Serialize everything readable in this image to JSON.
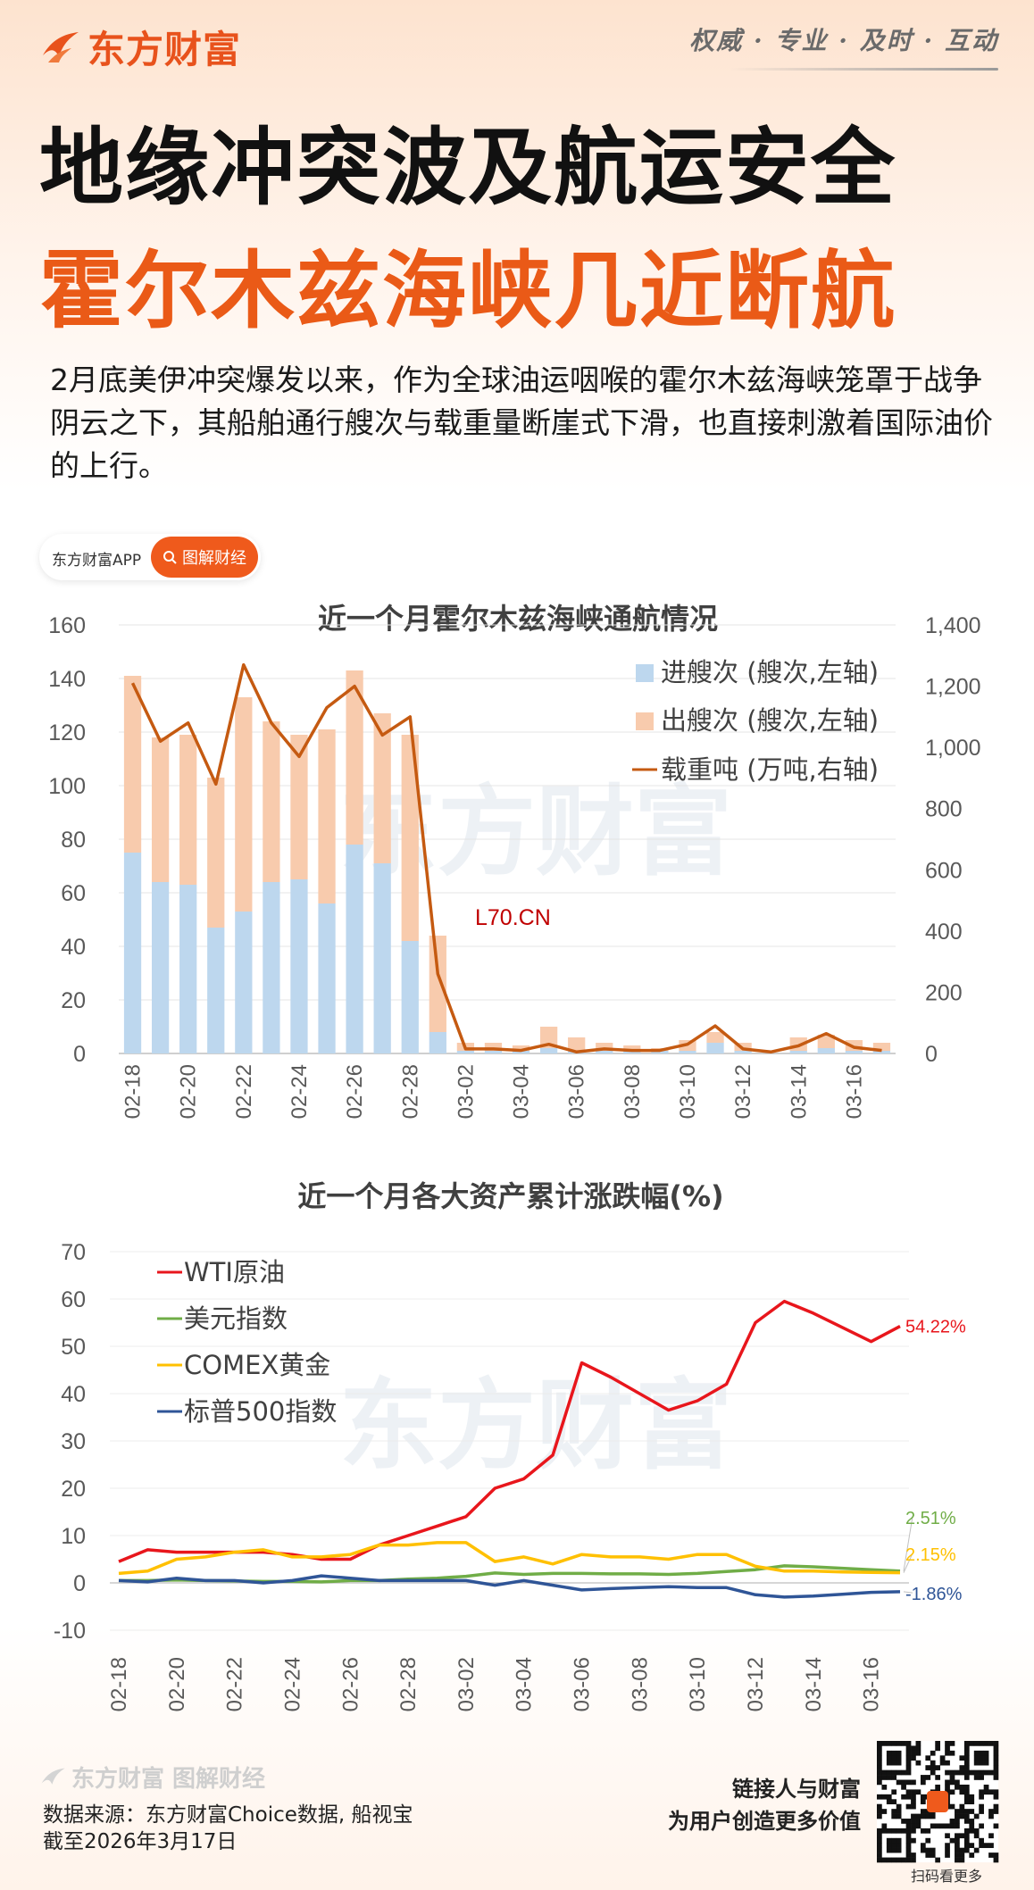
{
  "header": {
    "brand": "东方财富",
    "slogan": "权威 · 专业 · 及时 · 互动",
    "title_line1": "地缘冲突波及航运安全",
    "title_line2": "霍尔木兹海峡几近断航",
    "intro": "2月底美伊冲突爆发以来，作为全球油运咽喉的霍尔木兹海峡笼罩于战争阴云之下，其船舶通行艘次与载重量断崖式下滑，也直接刺激着国际油价的上行。"
  },
  "app_pill": {
    "app_name": "东方财富APP",
    "tag": "图解财经"
  },
  "chart_data": [
    {
      "type": "bar",
      "title": "近一个月霍尔木兹海峡通航情况",
      "categories": [
        "02-18",
        "02-19",
        "02-20",
        "02-21",
        "02-22",
        "02-23",
        "02-24",
        "02-25",
        "02-26",
        "02-27",
        "02-28",
        "03-01",
        "03-02",
        "03-03",
        "03-04",
        "03-05",
        "03-06",
        "03-07",
        "03-08",
        "03-09",
        "03-10",
        "03-11",
        "03-12",
        "03-13",
        "03-14",
        "03-15",
        "03-16",
        "03-17"
      ],
      "x_tick_labels": [
        "02-18",
        "02-20",
        "02-22",
        "02-24",
        "02-26",
        "02-28",
        "03-02",
        "03-04",
        "03-06",
        "03-08",
        "03-10",
        "03-12",
        "03-14",
        "03-16"
      ],
      "stacked": true,
      "series": [
        {
          "name": "进艘次 (艘次,左轴)",
          "axis": "left",
          "color": "#bdd7ee",
          "values": [
            75,
            64,
            63,
            47,
            53,
            64,
            65,
            56,
            78,
            71,
            42,
            8,
            1,
            1,
            1,
            2,
            1,
            1,
            1,
            1,
            1,
            4,
            1,
            0,
            1,
            2,
            1,
            1
          ]
        },
        {
          "name": "出艘次 (艘次,左轴)",
          "axis": "left",
          "color": "#f8cbad",
          "values": [
            66,
            54,
            56,
            56,
            80,
            60,
            54,
            65,
            65,
            56,
            77,
            36,
            3,
            3,
            2,
            8,
            5,
            3,
            2,
            1,
            4,
            4,
            3,
            0,
            5,
            5,
            4,
            3
          ]
        },
        {
          "name": "载重吨 (万吨,右轴)",
          "axis": "right",
          "type": "line",
          "color": "#c55a11",
          "values": [
            1210,
            1020,
            1080,
            880,
            1270,
            1080,
            970,
            1130,
            1200,
            1040,
            1100,
            260,
            15,
            15,
            10,
            30,
            5,
            15,
            10,
            10,
            30,
            90,
            15,
            5,
            25,
            65,
            20,
            10
          ]
        }
      ],
      "ylim_left": [
        0,
        160
      ],
      "yticks_left": [
        "0",
        "20",
        "40",
        "60",
        "80",
        "100",
        "120",
        "140",
        "160"
      ],
      "ylim_right": [
        0,
        1400
      ],
      "yticks_right": [
        "0",
        "200",
        "400",
        "600",
        "800",
        "1,000",
        "1,200",
        "1,400"
      ],
      "annotation": "L70.CN",
      "watermark": "东方财富"
    },
    {
      "type": "line",
      "title": "近一个月各大资产累计涨跌幅(%)",
      "categories": [
        "02-18",
        "02-19",
        "02-20",
        "02-21",
        "02-22",
        "02-23",
        "02-24",
        "02-25",
        "02-26",
        "02-27",
        "02-28",
        "03-01",
        "03-02",
        "03-03",
        "03-04",
        "03-05",
        "03-06",
        "03-07",
        "03-08",
        "03-09",
        "03-10",
        "03-11",
        "03-12",
        "03-13",
        "03-14",
        "03-15",
        "03-16",
        "03-17"
      ],
      "x_tick_labels": [
        "02-18",
        "02-20",
        "02-22",
        "02-24",
        "02-26",
        "02-28",
        "03-02",
        "03-04",
        "03-06",
        "03-08",
        "03-10",
        "03-12",
        "03-14",
        "03-16"
      ],
      "series": [
        {
          "name": "WTI原油",
          "color": "#e8161c",
          "values": [
            4.5,
            7.0,
            6.5,
            6.5,
            6.5,
            6.5,
            6.0,
            5.0,
            5.0,
            8.0,
            10.0,
            12.0,
            14.0,
            20.0,
            22.0,
            27.0,
            46.5,
            43.5,
            40.0,
            36.5,
            38.5,
            42.0,
            55.0,
            59.5,
            57.0,
            54.0,
            51.0,
            54.22
          ],
          "end_label": "54.22%"
        },
        {
          "name": "美元指数",
          "color": "#70ad47",
          "values": [
            0.5,
            0.5,
            0.6,
            0.5,
            0.4,
            0.3,
            0.3,
            0.2,
            0.5,
            0.5,
            0.8,
            1.0,
            1.4,
            2.1,
            1.8,
            2.0,
            2.0,
            1.9,
            1.9,
            1.8,
            2.0,
            2.4,
            2.8,
            3.6,
            3.4,
            3.1,
            2.8,
            2.51
          ],
          "end_label": "2.51%"
        },
        {
          "name": "COMEX黄金",
          "color": "#ffc000",
          "values": [
            2.0,
            2.5,
            5.0,
            5.5,
            6.5,
            7.0,
            5.5,
            5.5,
            6.0,
            8.0,
            8.0,
            8.5,
            8.5,
            4.5,
            5.5,
            4.0,
            6.0,
            5.5,
            5.5,
            5.0,
            6.0,
            6.0,
            3.5,
            2.5,
            2.5,
            2.3,
            2.2,
            2.15
          ],
          "end_label": "2.15%"
        },
        {
          "name": "标普500指数",
          "color": "#2f5597",
          "values": [
            0.5,
            0.2,
            1.0,
            0.5,
            0.5,
            0.0,
            0.5,
            1.5,
            1.0,
            0.5,
            0.5,
            0.5,
            0.5,
            -0.5,
            0.5,
            -0.5,
            -1.5,
            -1.2,
            -1.0,
            -0.8,
            -1.0,
            -1.0,
            -2.5,
            -3.0,
            -2.8,
            -2.4,
            -2.0,
            -1.86
          ],
          "end_label": "-1.86%"
        }
      ],
      "ylim": [
        -10,
        70
      ],
      "yticks": [
        "-10",
        "0",
        "10",
        "20",
        "30",
        "40",
        "50",
        "60",
        "70"
      ],
      "watermark": "东方财富"
    }
  ],
  "footer": {
    "logo": "东方财富 图解财经",
    "source": "数据来源：东方财富Choice数据, 船视宝",
    "date": "截至2026年3月17日",
    "tagline1": "链接人与财富",
    "tagline2": "为用户创造更多价值",
    "qr_caption": "扫码看更多"
  }
}
